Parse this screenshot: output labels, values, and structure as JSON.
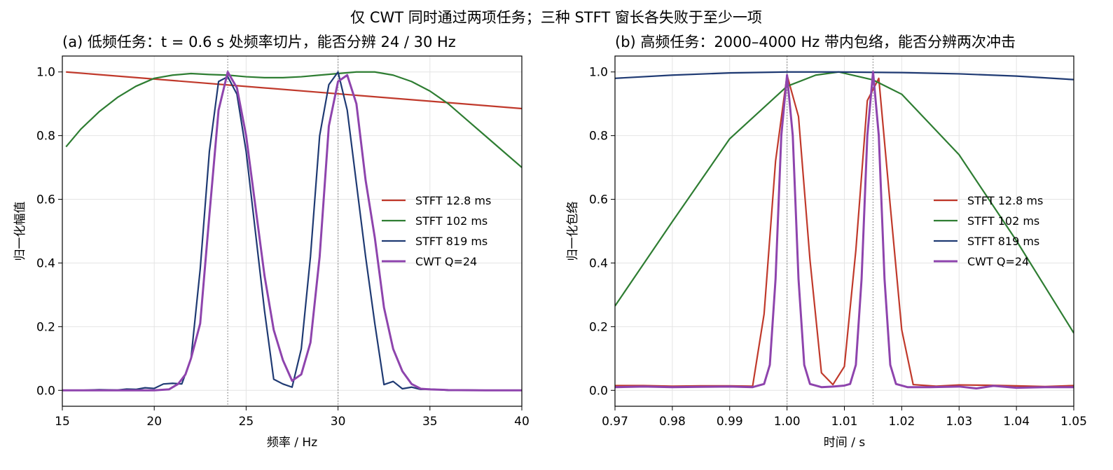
{
  "figure": {
    "suptitle": "仅 CWT 同时通过两项任务；三种 STFT 窗长各失败于至少一项"
  },
  "chart_data": [
    {
      "type": "line",
      "title": "(a) 低频任务：t = 0.6 s 处频率切片，能否分辨 24 / 30 Hz",
      "xlabel": "频率 / Hz",
      "ylabel": "归一化幅值",
      "xlim": [
        15,
        40
      ],
      "ylim": [
        -0.05,
        1.05
      ],
      "xticks": [
        15,
        20,
        25,
        30,
        35,
        40
      ],
      "xtick_labels": [
        "15",
        "20",
        "25",
        "30",
        "35",
        "40"
      ],
      "yticks": [
        0.0,
        0.2,
        0.4,
        0.6,
        0.8,
        1.0
      ],
      "ytick_labels": [
        "0.0",
        "0.2",
        "0.4",
        "0.6",
        "0.8",
        "1.0"
      ],
      "grid": true,
      "legend": "center-right",
      "vlines": [
        24,
        30
      ],
      "series": [
        {
          "name": "STFT 12.8 ms",
          "color": "#c0392b",
          "x": [
            15.2,
            40
          ],
          "y": [
            1.0,
            0.885
          ]
        },
        {
          "name": "STFT 102 ms",
          "color": "#2e7d32",
          "x": [
            15.2,
            16,
            17,
            18,
            19,
            20,
            21,
            22,
            23,
            24,
            25,
            26,
            27,
            28,
            29,
            30,
            31,
            32,
            33,
            34,
            35,
            36,
            37,
            38,
            39,
            40
          ],
          "y": [
            0.765,
            0.82,
            0.875,
            0.92,
            0.955,
            0.98,
            0.99,
            0.995,
            0.992,
            0.99,
            0.985,
            0.982,
            0.982,
            0.985,
            0.99,
            0.995,
            1.0,
            1.0,
            0.99,
            0.97,
            0.94,
            0.9,
            0.85,
            0.8,
            0.75,
            0.7
          ]
        },
        {
          "name": "STFT 819 ms",
          "color": "#1f3a73",
          "x": [
            15,
            16,
            17,
            18,
            18.5,
            19,
            19.5,
            20,
            20.5,
            21,
            21.5,
            22,
            22.5,
            23,
            23.5,
            24,
            24.5,
            25,
            25.5,
            26,
            26.5,
            27,
            27.5,
            28,
            28.5,
            29,
            29.5,
            30,
            30.5,
            31,
            31.5,
            32,
            32.5,
            33,
            33.5,
            34,
            34.5,
            35,
            36,
            37,
            38,
            39,
            40
          ],
          "y": [
            0.0,
            0.0,
            0.002,
            0.001,
            0.004,
            0.003,
            0.008,
            0.006,
            0.02,
            0.022,
            0.02,
            0.1,
            0.38,
            0.75,
            0.97,
            0.985,
            0.93,
            0.75,
            0.5,
            0.25,
            0.035,
            0.02,
            0.01,
            0.13,
            0.42,
            0.8,
            0.96,
            1.0,
            0.88,
            0.65,
            0.42,
            0.21,
            0.018,
            0.028,
            0.005,
            0.01,
            0.003,
            0.004,
            0.0,
            0.001,
            0.0,
            0.0,
            0.0
          ]
        },
        {
          "name": "CWT Q=24",
          "color": "#8e44ad",
          "x": [
            15,
            17,
            19,
            20,
            20.8,
            21.3,
            21.7,
            22,
            22.5,
            23,
            23.5,
            24,
            24.5,
            25,
            25.5,
            26,
            26.5,
            27,
            27.5,
            28,
            28.5,
            29,
            29.5,
            30,
            30.5,
            31,
            31.5,
            32,
            32.5,
            33,
            33.5,
            34,
            34.5,
            35,
            36,
            38,
            40
          ],
          "y": [
            0.0,
            0.0,
            0.0,
            0.0,
            0.003,
            0.02,
            0.05,
            0.1,
            0.21,
            0.55,
            0.88,
            1.0,
            0.95,
            0.8,
            0.58,
            0.36,
            0.19,
            0.095,
            0.03,
            0.05,
            0.15,
            0.42,
            0.83,
            0.97,
            0.99,
            0.9,
            0.66,
            0.48,
            0.26,
            0.13,
            0.06,
            0.02,
            0.005,
            0.003,
            0.001,
            0.0,
            0.0
          ]
        }
      ]
    },
    {
      "type": "line",
      "title": "(b) 高频任务：2000–4000 Hz 带内包络，能否分辨两次冲击",
      "xlabel": "时间 / s",
      "ylabel": "归一化包络",
      "xlim": [
        0.97,
        1.05
      ],
      "ylim": [
        -0.05,
        1.05
      ],
      "xticks": [
        0.97,
        0.98,
        0.99,
        1.0,
        1.01,
        1.02,
        1.03,
        1.04,
        1.05
      ],
      "xtick_labels": [
        "0.97",
        "0.98",
        "0.99",
        "1.00",
        "1.01",
        "1.02",
        "1.03",
        "1.04",
        "1.05"
      ],
      "yticks": [
        0.0,
        0.2,
        0.4,
        0.6,
        0.8,
        1.0
      ],
      "ytick_labels": [
        "0.0",
        "0.2",
        "0.4",
        "0.6",
        "0.8",
        "1.0"
      ],
      "grid": true,
      "legend": "center-right",
      "vlines": [
        1.0,
        1.015
      ],
      "series": [
        {
          "name": "STFT 12.8 ms",
          "color": "#c0392b",
          "x": [
            0.97,
            0.975,
            0.98,
            0.985,
            0.99,
            0.994,
            0.996,
            0.998,
            1.0,
            1.002,
            1.004,
            1.006,
            1.008,
            1.01,
            1.012,
            1.014,
            1.016,
            1.018,
            1.02,
            1.022,
            1.026,
            1.03,
            1.035,
            1.04,
            1.045,
            1.05
          ],
          "y": [
            0.015,
            0.015,
            0.013,
            0.014,
            0.014,
            0.013,
            0.24,
            0.72,
            0.99,
            0.86,
            0.41,
            0.055,
            0.018,
            0.075,
            0.44,
            0.91,
            0.98,
            0.58,
            0.19,
            0.018,
            0.013,
            0.017,
            0.016,
            0.014,
            0.012,
            0.015
          ]
        },
        {
          "name": "STFT 102 ms",
          "color": "#2e7d32",
          "x": [
            0.97,
            0.98,
            0.99,
            1.0,
            1.005,
            1.009,
            1.015,
            1.02,
            1.03,
            1.04,
            1.05
          ],
          "y": [
            0.265,
            0.53,
            0.79,
            0.955,
            0.99,
            1.0,
            0.975,
            0.93,
            0.74,
            0.47,
            0.18
          ]
        },
        {
          "name": "STFT 819 ms",
          "color": "#1f3a73",
          "x": [
            0.97,
            0.98,
            0.99,
            1.0,
            1.009,
            1.02,
            1.03,
            1.04,
            1.05
          ],
          "y": [
            0.98,
            0.99,
            0.997,
            1.0,
            1.0,
            0.998,
            0.994,
            0.987,
            0.976
          ]
        },
        {
          "name": "CWT Q=24",
          "color": "#8e44ad",
          "x": [
            0.97,
            0.975,
            0.98,
            0.985,
            0.99,
            0.994,
            0.996,
            0.997,
            0.998,
            0.999,
            1.0,
            1.001,
            1.002,
            1.003,
            1.004,
            1.006,
            1.008,
            1.01,
            1.011,
            1.012,
            1.013,
            1.014,
            1.015,
            1.016,
            1.017,
            1.018,
            1.019,
            1.021,
            1.025,
            1.03,
            1.033,
            1.036,
            1.04,
            1.045,
            1.05
          ],
          "y": [
            0.01,
            0.012,
            0.01,
            0.011,
            0.012,
            0.01,
            0.02,
            0.08,
            0.35,
            0.8,
            0.99,
            0.8,
            0.35,
            0.08,
            0.02,
            0.01,
            0.012,
            0.015,
            0.02,
            0.08,
            0.35,
            0.8,
            1.0,
            0.8,
            0.35,
            0.08,
            0.02,
            0.01,
            0.01,
            0.012,
            0.006,
            0.014,
            0.008,
            0.01,
            0.01
          ]
        }
      ]
    }
  ]
}
